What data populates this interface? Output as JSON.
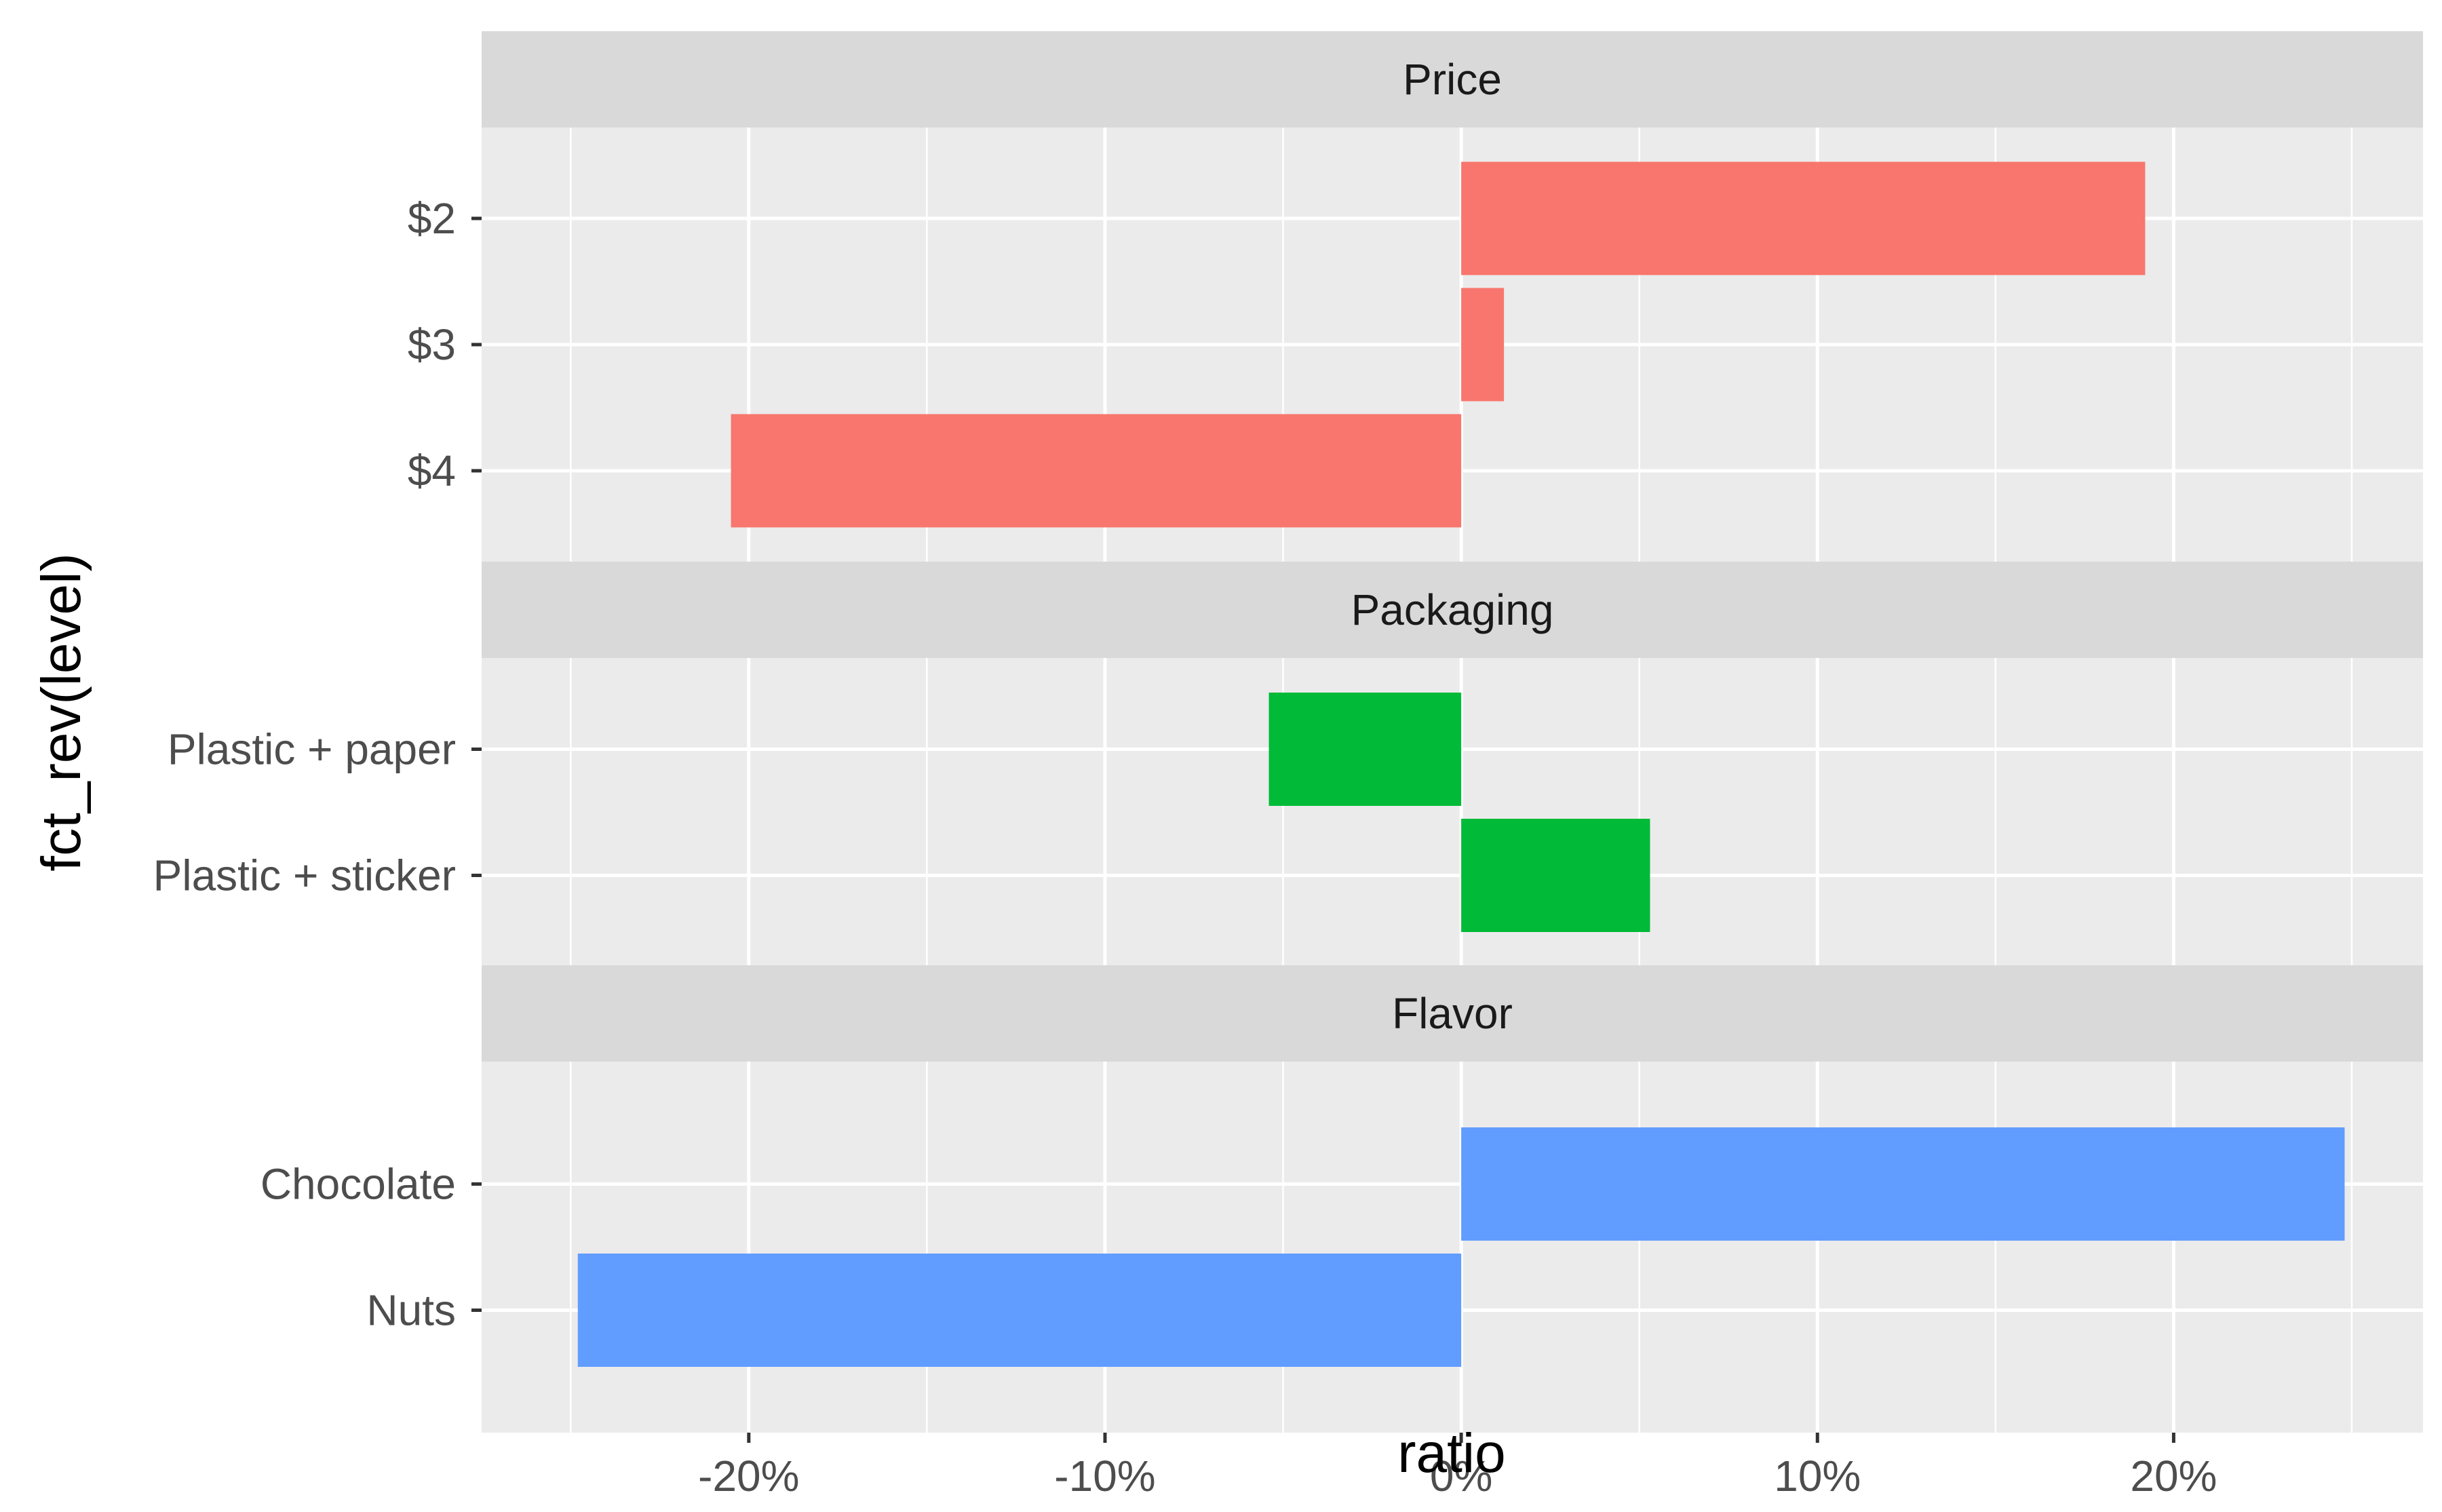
{
  "chart_data": {
    "type": "bar",
    "orientation": "horizontal",
    "facet_layout": "vertical",
    "xlabel": "ratio",
    "ylabel": "fct_rev(level)",
    "xlim": [
      -0.275,
      0.27
    ],
    "x_ticks": [
      -0.2,
      -0.1,
      0,
      0.1,
      0.2
    ],
    "x_tick_labels": [
      "-20%",
      "-10%",
      "0%",
      "10%",
      "20%"
    ],
    "grid": true,
    "legend": "none",
    "panels": [
      {
        "strip": "Price",
        "color": "#F8766D",
        "categories": [
          "$2",
          "$3",
          "$4"
        ],
        "values": [
          0.192,
          0.012,
          -0.205
        ]
      },
      {
        "strip": "Packaging",
        "color": "#00BA38",
        "categories": [
          "Plastic + paper",
          "Plastic + sticker"
        ],
        "values": [
          -0.054,
          0.053
        ]
      },
      {
        "strip": "Flavor",
        "color": "#619CFF",
        "categories": [
          "Chocolate",
          "Nuts"
        ],
        "values": [
          0.248,
          -0.248
        ]
      }
    ]
  }
}
